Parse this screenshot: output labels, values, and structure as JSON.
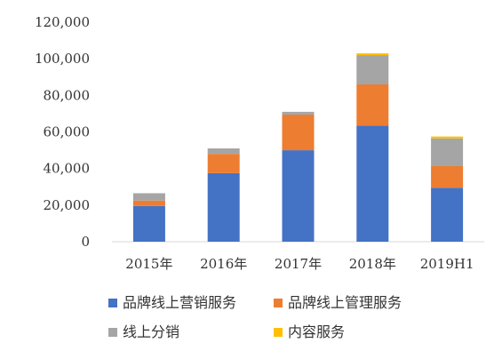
{
  "chart_data": {
    "type": "bar",
    "stacked": true,
    "categories": [
      "2015年",
      "2016年",
      "2017年",
      "2018年",
      "2019H1"
    ],
    "series": [
      {
        "name": "品牌线上营销服务",
        "color": "#4472C4",
        "values": [
          19500,
          37500,
          50000,
          63500,
          29500
        ]
      },
      {
        "name": "品牌线上管理服务",
        "color": "#ED7D31",
        "values": [
          3000,
          10500,
          19500,
          22500,
          12000
        ]
      },
      {
        "name": "线上分销",
        "color": "#A5A5A5",
        "values": [
          4000,
          3000,
          1500,
          16000,
          15000
        ]
      },
      {
        "name": "内容服务",
        "color": "#FFC000",
        "values": [
          0,
          0,
          0,
          1000,
          1000
        ]
      }
    ],
    "yticks": [
      "0",
      "20,000",
      "40,000",
      "60,000",
      "80,000",
      "100,000",
      "120,000"
    ],
    "ylim": [
      0,
      120000
    ],
    "grid": false,
    "legend": "bottom"
  }
}
